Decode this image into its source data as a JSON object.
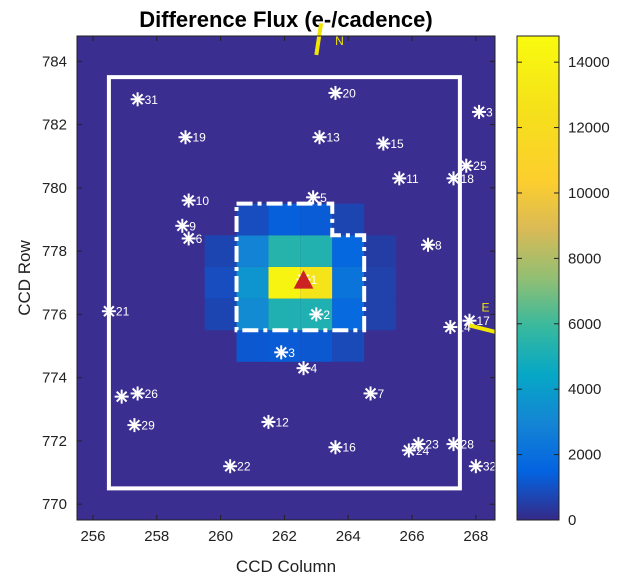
{
  "chart_data": {
    "type": "heatmap",
    "title": "Difference Flux (e-/cadence)",
    "xlabel": "CCD Column",
    "ylabel": "CCD Row",
    "xlim": [
      255.5,
      268.6
    ],
    "ylim": [
      769.5,
      784.8
    ],
    "x_ticks": [
      256,
      258,
      260,
      262,
      264,
      266,
      268
    ],
    "y_ticks": [
      770,
      772,
      774,
      776,
      778,
      780,
      782,
      784
    ],
    "colorbar": {
      "range": [
        0,
        14800
      ],
      "ticks": [
        0,
        2000,
        4000,
        6000,
        8000,
        10000,
        12000,
        14000
      ],
      "colormap": "parula"
    },
    "background_value": 300,
    "pixels": [
      {
        "col": 260,
        "row": 776,
        "value": 700
      },
      {
        "col": 260,
        "row": 777,
        "value": 900
      },
      {
        "col": 260,
        "row": 778,
        "value": 700
      },
      {
        "col": 261,
        "row": 775,
        "value": 1200
      },
      {
        "col": 261,
        "row": 776,
        "value": 3200
      },
      {
        "col": 261,
        "row": 777,
        "value": 3600
      },
      {
        "col": 261,
        "row": 778,
        "value": 2900
      },
      {
        "col": 261,
        "row": 779,
        "value": 900
      },
      {
        "col": 262,
        "row": 775,
        "value": 1300
      },
      {
        "col": 262,
        "row": 776,
        "value": 5200
      },
      {
        "col": 262,
        "row": 777,
        "value": 14200
      },
      {
        "col": 262,
        "row": 778,
        "value": 5400
      },
      {
        "col": 262,
        "row": 779,
        "value": 1400
      },
      {
        "col": 263,
        "row": 775,
        "value": 1200
      },
      {
        "col": 263,
        "row": 776,
        "value": 5200
      },
      {
        "col": 263,
        "row": 777,
        "value": 12800
      },
      {
        "col": 263,
        "row": 778,
        "value": 5300
      },
      {
        "col": 263,
        "row": 779,
        "value": 1300
      },
      {
        "col": 264,
        "row": 775,
        "value": 800
      },
      {
        "col": 264,
        "row": 776,
        "value": 1800
      },
      {
        "col": 264,
        "row": 777,
        "value": 2200
      },
      {
        "col": 264,
        "row": 778,
        "value": 1700
      },
      {
        "col": 264,
        "row": 779,
        "value": 700
      },
      {
        "col": 265,
        "row": 776,
        "value": 600
      },
      {
        "col": 265,
        "row": 777,
        "value": 600
      },
      {
        "col": 265,
        "row": 778,
        "value": 500
      }
    ],
    "mask_outline": {
      "color": "#ffffff",
      "points": [
        [
          256.5,
          783.5
        ],
        [
          267.5,
          783.5
        ],
        [
          267.5,
          770.5
        ],
        [
          256.5,
          770.5
        ]
      ]
    },
    "aperture_outline": {
      "color": "#ffffff",
      "points": [
        [
          260.5,
          779.5
        ],
        [
          263.5,
          779.5
        ],
        [
          263.5,
          778.5
        ],
        [
          264.5,
          778.5
        ],
        [
          264.5,
          775.5
        ],
        [
          260.5,
          775.5
        ]
      ]
    },
    "centroid": {
      "x": 262.6,
      "y": 777.05,
      "color": "#cc2222"
    },
    "stars": [
      {
        "label": "31",
        "x": 257.4,
        "y": 782.8
      },
      {
        "label": "19",
        "x": 258.9,
        "y": 781.6
      },
      {
        "label": "20",
        "x": 263.6,
        "y": 783.0
      },
      {
        "label": "13",
        "x": 263.1,
        "y": 781.6
      },
      {
        "label": "15",
        "x": 265.1,
        "y": 781.4
      },
      {
        "label": "3",
        "x": 268.1,
        "y": 782.4
      },
      {
        "label": "25",
        "x": 267.7,
        "y": 780.7
      },
      {
        "label": "10",
        "x": 259.0,
        "y": 779.6
      },
      {
        "label": "5",
        "x": 262.9,
        "y": 779.7
      },
      {
        "label": "11",
        "x": 265.6,
        "y": 780.3
      },
      {
        "label": "18",
        "x": 267.3,
        "y": 780.3
      },
      {
        "label": "9",
        "x": 258.8,
        "y": 778.8
      },
      {
        "label": "6",
        "x": 259.0,
        "y": 778.4
      },
      {
        "label": "8",
        "x": 266.5,
        "y": 778.2
      },
      {
        "label": "1",
        "x": 262.6,
        "y": 777.1
      },
      {
        "label": "21",
        "x": 256.5,
        "y": 776.1
      },
      {
        "label": "2",
        "x": 263.0,
        "y": 776.0
      },
      {
        "label": "14",
        "x": 267.2,
        "y": 775.6
      },
      {
        "label": "17",
        "x": 267.8,
        "y": 775.8
      },
      {
        "label": "3",
        "x": 261.9,
        "y": 774.8
      },
      {
        "label": "4",
        "x": 262.6,
        "y": 774.3
      },
      {
        "label": "26",
        "x": 257.4,
        "y": 773.5
      },
      {
        "label": "",
        "x": 256.9,
        "y": 773.4
      },
      {
        "label": "7",
        "x": 264.7,
        "y": 773.5
      },
      {
        "label": "29",
        "x": 257.3,
        "y": 772.5
      },
      {
        "label": "12",
        "x": 261.5,
        "y": 772.6
      },
      {
        "label": "16",
        "x": 263.6,
        "y": 771.8
      },
      {
        "label": "23",
        "x": 266.2,
        "y": 771.9
      },
      {
        "label": "24",
        "x": 265.9,
        "y": 771.7
      },
      {
        "label": "28",
        "x": 267.3,
        "y": 771.9
      },
      {
        "label": "22",
        "x": 260.3,
        "y": 771.2
      },
      {
        "label": "32",
        "x": 268.0,
        "y": 771.2
      }
    ],
    "compass": {
      "north": {
        "label": "N",
        "from": [
          263.0,
          784.2
        ],
        "to": [
          263.15,
          785.2
        ],
        "color": "#f2e600"
      },
      "east": {
        "label": "E",
        "from": [
          267.8,
          775.65
        ],
        "to": [
          268.7,
          775.45
        ],
        "color": "#f2e600"
      }
    }
  }
}
